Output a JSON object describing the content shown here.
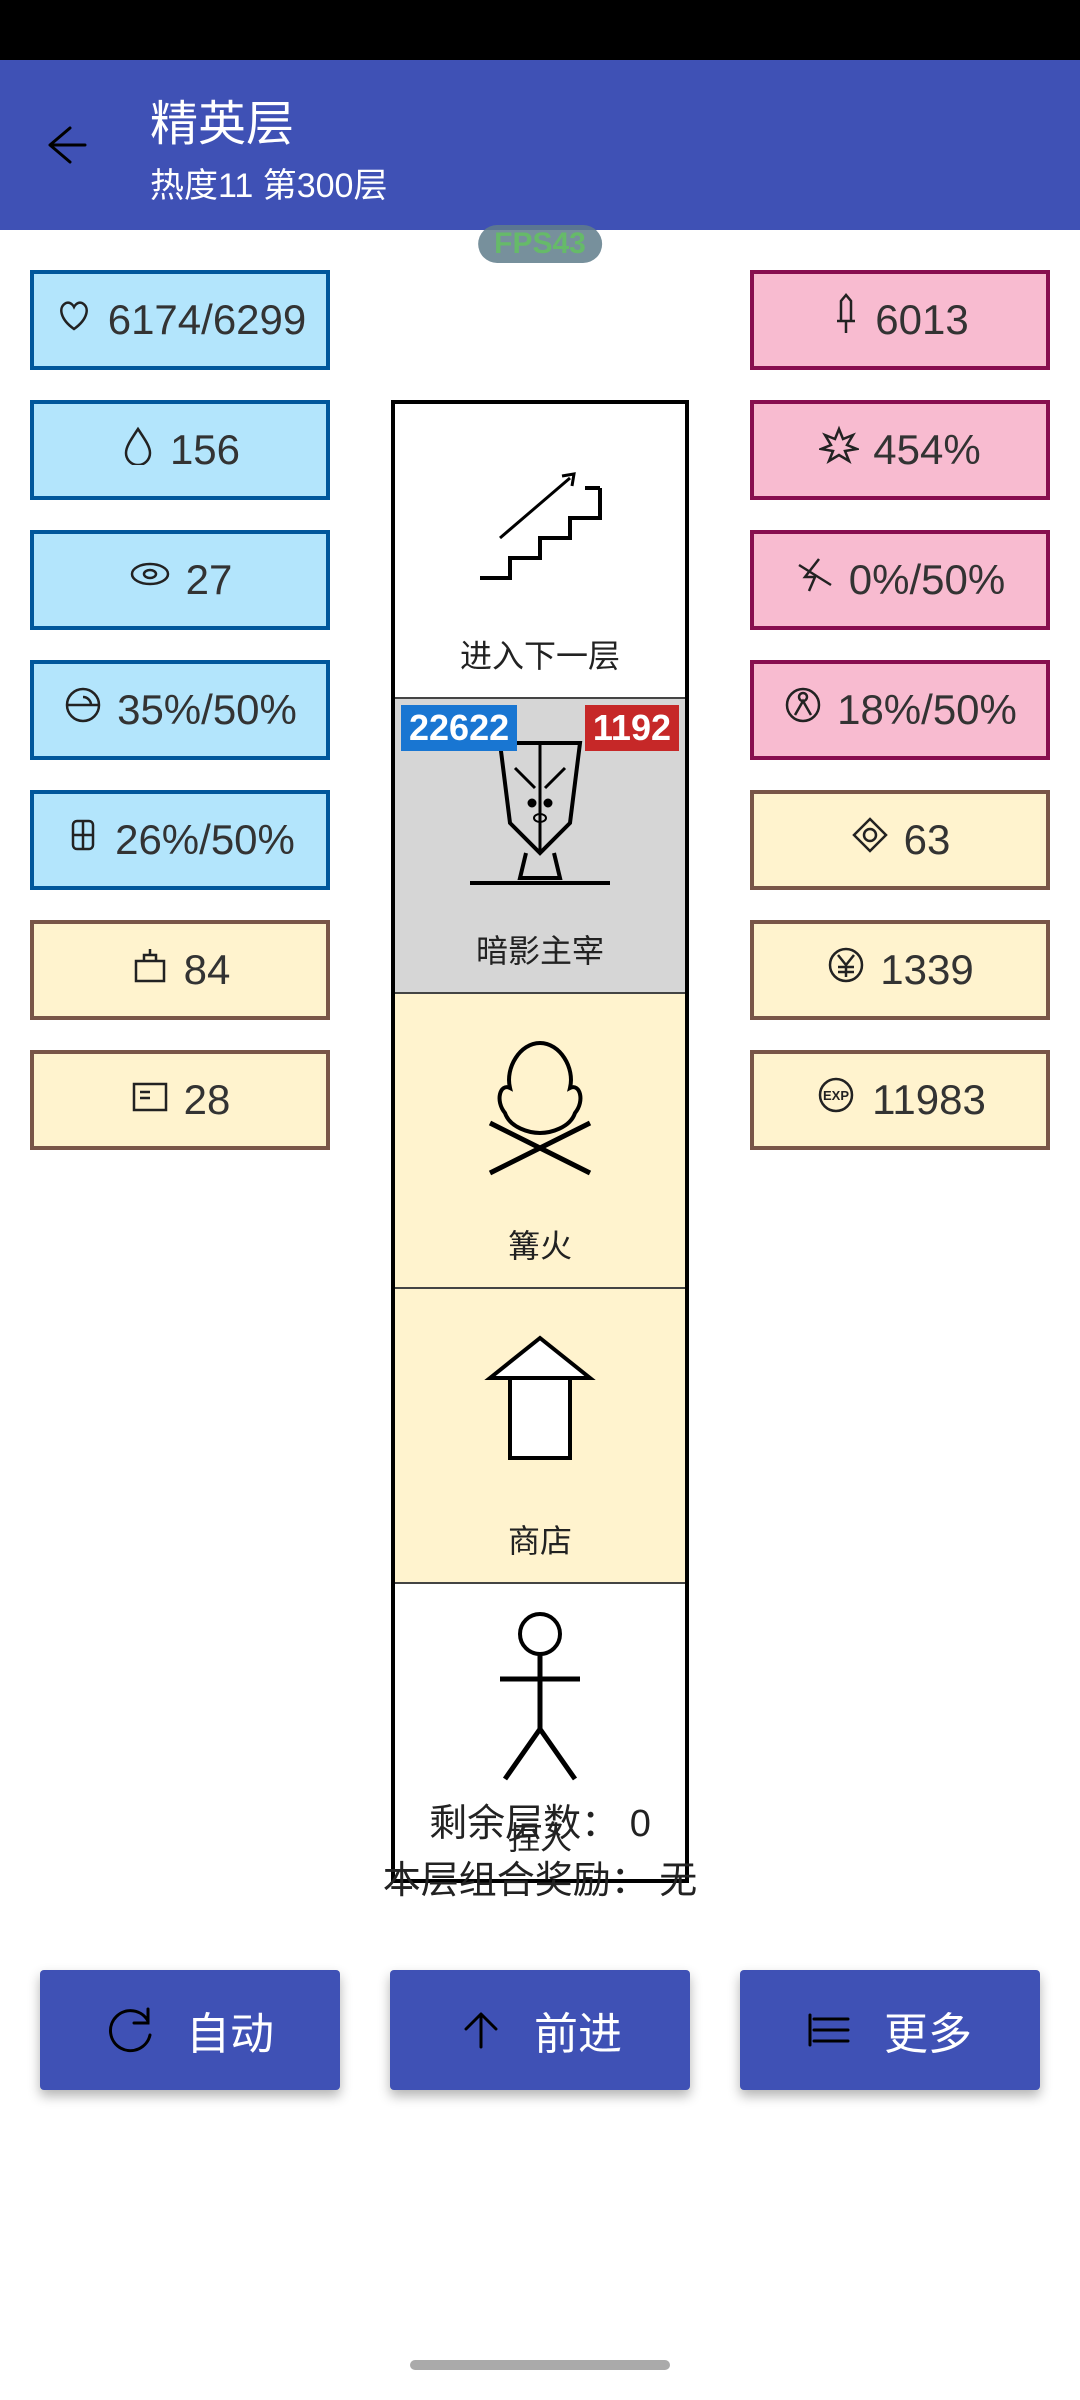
{
  "header": {
    "title": "精英层",
    "subtitle": "热度11 第300层"
  },
  "fps": "FPS43",
  "left_stats": [
    {
      "icon": "heart",
      "value": "6174/6299",
      "color": "blue"
    },
    {
      "icon": "droplet",
      "value": "156",
      "color": "blue"
    },
    {
      "icon": "shield",
      "value": "27",
      "color": "blue"
    },
    {
      "icon": "target",
      "value": "35%/50%",
      "color": "blue"
    },
    {
      "icon": "pierce",
      "value": "26%/50%",
      "color": "blue"
    },
    {
      "icon": "box",
      "value": "84",
      "color": "yellow"
    },
    {
      "icon": "card",
      "value": "28",
      "color": "yellow"
    }
  ],
  "right_stats": [
    {
      "icon": "sword",
      "value": "6013",
      "color": "pink"
    },
    {
      "icon": "burst",
      "value": "454%",
      "color": "pink"
    },
    {
      "icon": "bolt",
      "value": "0%/50%",
      "color": "pink"
    },
    {
      "icon": "atom",
      "value": "18%/50%",
      "color": "pink"
    },
    {
      "icon": "diamond",
      "value": "63",
      "color": "yellow"
    },
    {
      "icon": "yen",
      "value": "1339",
      "color": "yellow"
    },
    {
      "icon": "exp",
      "value": "11983",
      "color": "yellow"
    }
  ],
  "tiles": [
    {
      "label": "进入下一层",
      "bg": "white",
      "icon": "stairs"
    },
    {
      "label": "暗影主宰",
      "bg": "grey",
      "icon": "boss",
      "hp": "22622",
      "atk": "1192"
    },
    {
      "label": "篝火",
      "bg": "cream",
      "icon": "campfire"
    },
    {
      "label": "商店",
      "bg": "cream",
      "icon": "shop"
    },
    {
      "label": "捏人",
      "bg": "white",
      "icon": "person"
    }
  ],
  "info_line1": "剩余层数： 0",
  "info_line2": "本层组合奖励： 无",
  "buttons": {
    "auto": "自动",
    "advance": "前进",
    "more": "更多"
  },
  "colors": {
    "primary": "#3f51b5",
    "stat_blue_bg": "#b3e5fc",
    "stat_pink_bg": "#f8bbd0",
    "stat_yellow_bg": "#fff3ce"
  }
}
